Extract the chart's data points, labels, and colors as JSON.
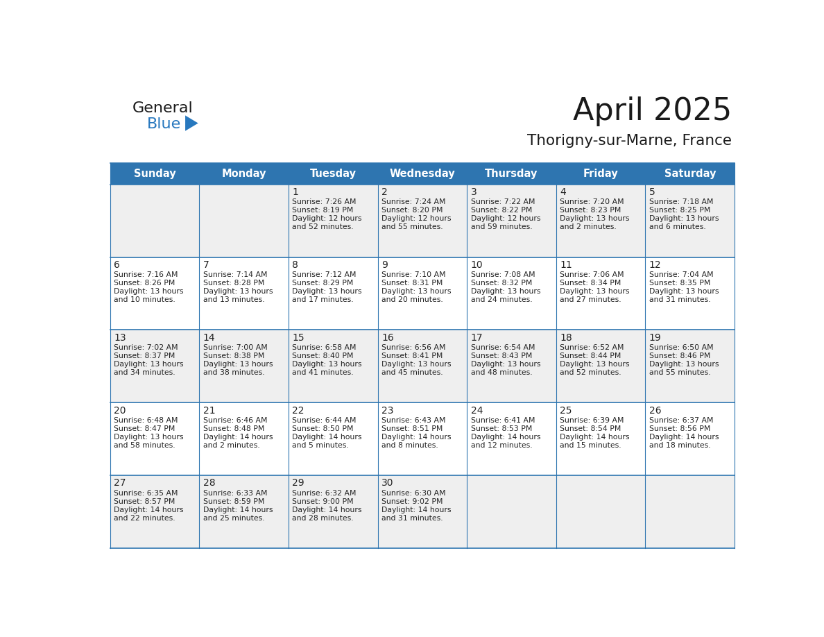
{
  "title": "April 2025",
  "subtitle": "Thorigny-sur-Marne, France",
  "header_bg": "#2E75B0",
  "header_text": "#FFFFFF",
  "day_names": [
    "Sunday",
    "Monday",
    "Tuesday",
    "Wednesday",
    "Thursday",
    "Friday",
    "Saturday"
  ],
  "cell_bg_odd": "#EFEFEF",
  "cell_bg_even": "#FFFFFF",
  "cell_border": "#2E75B0",
  "day_num_color": "#222222",
  "text_color": "#222222",
  "logo_general_color": "#1a1a1a",
  "logo_blue_color": "#2878BE",
  "weeks": [
    [
      {
        "day": "",
        "sunrise": "",
        "sunset": "",
        "daylight": ""
      },
      {
        "day": "",
        "sunrise": "",
        "sunset": "",
        "daylight": ""
      },
      {
        "day": "1",
        "sunrise": "7:26 AM",
        "sunset": "8:19 PM",
        "daylight": "12 hours\nand 52 minutes."
      },
      {
        "day": "2",
        "sunrise": "7:24 AM",
        "sunset": "8:20 PM",
        "daylight": "12 hours\nand 55 minutes."
      },
      {
        "day": "3",
        "sunrise": "7:22 AM",
        "sunset": "8:22 PM",
        "daylight": "12 hours\nand 59 minutes."
      },
      {
        "day": "4",
        "sunrise": "7:20 AM",
        "sunset": "8:23 PM",
        "daylight": "13 hours\nand 2 minutes."
      },
      {
        "day": "5",
        "sunrise": "7:18 AM",
        "sunset": "8:25 PM",
        "daylight": "13 hours\nand 6 minutes."
      }
    ],
    [
      {
        "day": "6",
        "sunrise": "7:16 AM",
        "sunset": "8:26 PM",
        "daylight": "13 hours\nand 10 minutes."
      },
      {
        "day": "7",
        "sunrise": "7:14 AM",
        "sunset": "8:28 PM",
        "daylight": "13 hours\nand 13 minutes."
      },
      {
        "day": "8",
        "sunrise": "7:12 AM",
        "sunset": "8:29 PM",
        "daylight": "13 hours\nand 17 minutes."
      },
      {
        "day": "9",
        "sunrise": "7:10 AM",
        "sunset": "8:31 PM",
        "daylight": "13 hours\nand 20 minutes."
      },
      {
        "day": "10",
        "sunrise": "7:08 AM",
        "sunset": "8:32 PM",
        "daylight": "13 hours\nand 24 minutes."
      },
      {
        "day": "11",
        "sunrise": "7:06 AM",
        "sunset": "8:34 PM",
        "daylight": "13 hours\nand 27 minutes."
      },
      {
        "day": "12",
        "sunrise": "7:04 AM",
        "sunset": "8:35 PM",
        "daylight": "13 hours\nand 31 minutes."
      }
    ],
    [
      {
        "day": "13",
        "sunrise": "7:02 AM",
        "sunset": "8:37 PM",
        "daylight": "13 hours\nand 34 minutes."
      },
      {
        "day": "14",
        "sunrise": "7:00 AM",
        "sunset": "8:38 PM",
        "daylight": "13 hours\nand 38 minutes."
      },
      {
        "day": "15",
        "sunrise": "6:58 AM",
        "sunset": "8:40 PM",
        "daylight": "13 hours\nand 41 minutes."
      },
      {
        "day": "16",
        "sunrise": "6:56 AM",
        "sunset": "8:41 PM",
        "daylight": "13 hours\nand 45 minutes."
      },
      {
        "day": "17",
        "sunrise": "6:54 AM",
        "sunset": "8:43 PM",
        "daylight": "13 hours\nand 48 minutes."
      },
      {
        "day": "18",
        "sunrise": "6:52 AM",
        "sunset": "8:44 PM",
        "daylight": "13 hours\nand 52 minutes."
      },
      {
        "day": "19",
        "sunrise": "6:50 AM",
        "sunset": "8:46 PM",
        "daylight": "13 hours\nand 55 minutes."
      }
    ],
    [
      {
        "day": "20",
        "sunrise": "6:48 AM",
        "sunset": "8:47 PM",
        "daylight": "13 hours\nand 58 minutes."
      },
      {
        "day": "21",
        "sunrise": "6:46 AM",
        "sunset": "8:48 PM",
        "daylight": "14 hours\nand 2 minutes."
      },
      {
        "day": "22",
        "sunrise": "6:44 AM",
        "sunset": "8:50 PM",
        "daylight": "14 hours\nand 5 minutes."
      },
      {
        "day": "23",
        "sunrise": "6:43 AM",
        "sunset": "8:51 PM",
        "daylight": "14 hours\nand 8 minutes."
      },
      {
        "day": "24",
        "sunrise": "6:41 AM",
        "sunset": "8:53 PM",
        "daylight": "14 hours\nand 12 minutes."
      },
      {
        "day": "25",
        "sunrise": "6:39 AM",
        "sunset": "8:54 PM",
        "daylight": "14 hours\nand 15 minutes."
      },
      {
        "day": "26",
        "sunrise": "6:37 AM",
        "sunset": "8:56 PM",
        "daylight": "14 hours\nand 18 minutes."
      }
    ],
    [
      {
        "day": "27",
        "sunrise": "6:35 AM",
        "sunset": "8:57 PM",
        "daylight": "14 hours\nand 22 minutes."
      },
      {
        "day": "28",
        "sunrise": "6:33 AM",
        "sunset": "8:59 PM",
        "daylight": "14 hours\nand 25 minutes."
      },
      {
        "day": "29",
        "sunrise": "6:32 AM",
        "sunset": "9:00 PM",
        "daylight": "14 hours\nand 28 minutes."
      },
      {
        "day": "30",
        "sunrise": "6:30 AM",
        "sunset": "9:02 PM",
        "daylight": "14 hours\nand 31 minutes."
      },
      {
        "day": "",
        "sunrise": "",
        "sunset": "",
        "daylight": ""
      },
      {
        "day": "",
        "sunrise": "",
        "sunset": "",
        "daylight": ""
      },
      {
        "day": "",
        "sunrise": "",
        "sunset": "",
        "daylight": ""
      }
    ]
  ]
}
